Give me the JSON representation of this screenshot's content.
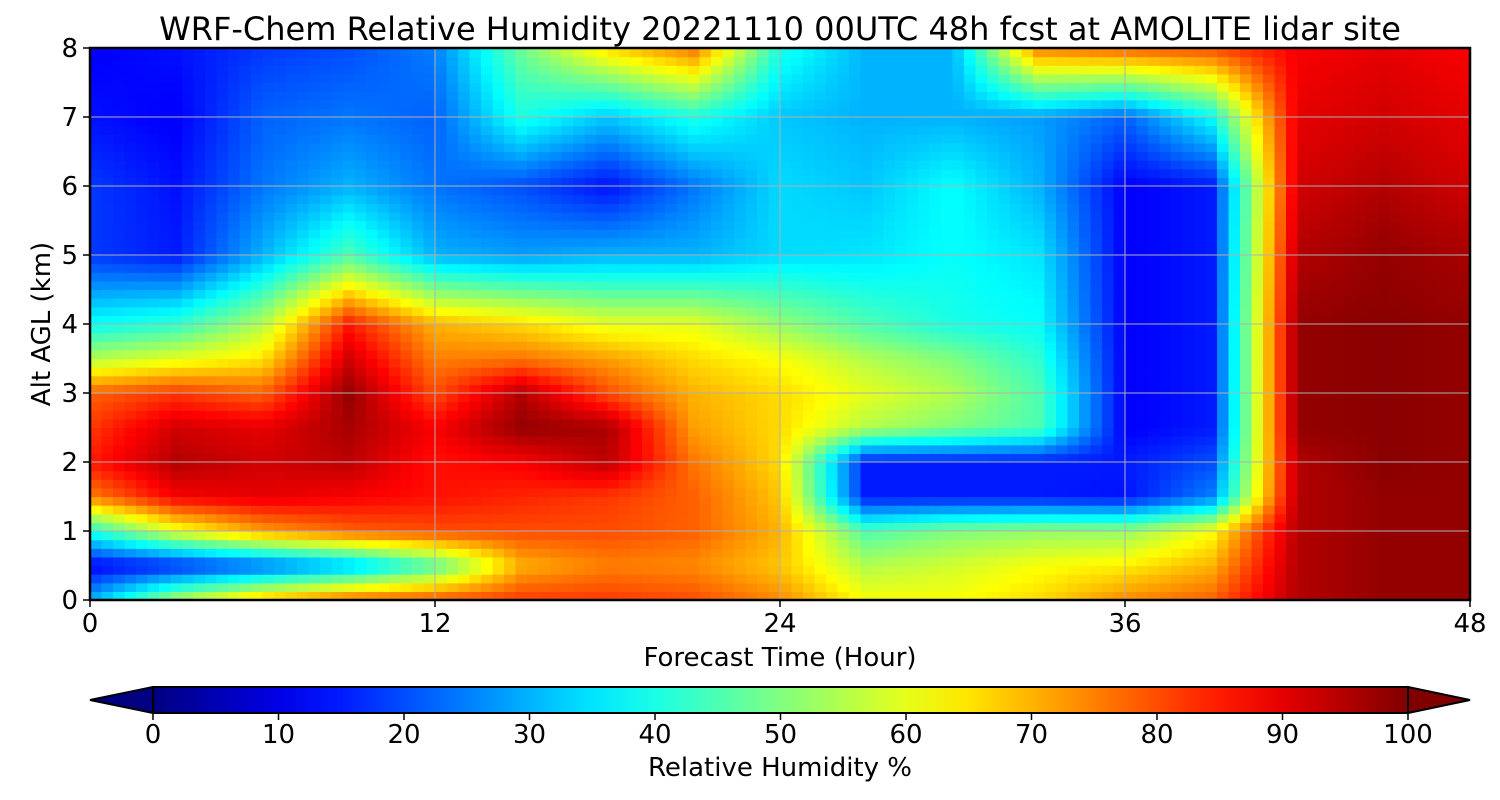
{
  "chart_data": {
    "type": "heatmap",
    "title": "WRF-Chem Relative Humidity 20221110 00UTC 48h fcst at AMOLITE lidar site",
    "xlabel": "Forecast Time (Hour)",
    "ylabel": "Alt AGL (km)",
    "xlim": [
      0,
      48
    ],
    "ylim": [
      0,
      8
    ],
    "xticks": [
      "0",
      "12",
      "24",
      "36",
      "48"
    ],
    "yticks": [
      "0",
      "1",
      "2",
      "3",
      "4",
      "5",
      "6",
      "7",
      "8"
    ],
    "grid": true,
    "colormap": "jet",
    "colorbar": {
      "label": "Relative Humidity %",
      "range": [
        0,
        100
      ],
      "ticks": [
        "0",
        "10",
        "20",
        "30",
        "40",
        "50",
        "60",
        "70",
        "80",
        "90",
        "100"
      ],
      "extend": "both",
      "orientation": "horizontal",
      "position": "bottom"
    },
    "x": [
      0,
      3,
      6,
      9,
      12,
      15,
      18,
      21,
      24,
      27,
      30,
      33,
      36,
      39,
      42,
      45,
      48
    ],
    "y": [
      0,
      0.5,
      1,
      1.5,
      2,
      2.5,
      3,
      3.5,
      4,
      5,
      6,
      7,
      8
    ],
    "z": [
      [
        30,
        55,
        70,
        78,
        80,
        82,
        82,
        80,
        74,
        62,
        62,
        66,
        74,
        78,
        95,
        98,
        98
      ],
      [
        12,
        16,
        22,
        30,
        45,
        70,
        75,
        74,
        68,
        55,
        58,
        62,
        64,
        70,
        95,
        98,
        98
      ],
      [
        40,
        60,
        72,
        78,
        80,
        80,
        80,
        78,
        70,
        45,
        50,
        52,
        52,
        62,
        95,
        98,
        98
      ],
      [
        75,
        88,
        90,
        88,
        86,
        84,
        82,
        78,
        68,
        15,
        15,
        15,
        14,
        25,
        95,
        98,
        98
      ],
      [
        85,
        95,
        92,
        94,
        86,
        88,
        94,
        76,
        66,
        15,
        15,
        15,
        15,
        20,
        95,
        99,
        98
      ],
      [
        82,
        92,
        90,
        96,
        88,
        98,
        96,
        72,
        66,
        55,
        50,
        45,
        12,
        15,
        98,
        99,
        98
      ],
      [
        78,
        82,
        78,
        98,
        80,
        95,
        80,
        70,
        66,
        60,
        55,
        45,
        12,
        15,
        98,
        99,
        98
      ],
      [
        55,
        60,
        65,
        92,
        75,
        76,
        72,
        66,
        62,
        55,
        50,
        42,
        12,
        15,
        98,
        99,
        98
      ],
      [
        38,
        42,
        55,
        85,
        70,
        66,
        60,
        60,
        52,
        45,
        40,
        38,
        12,
        15,
        98,
        99,
        98
      ],
      [
        18,
        15,
        30,
        45,
        30,
        28,
        30,
        30,
        34,
        35,
        38,
        35,
        12,
        15,
        95,
        98,
        96
      ],
      [
        18,
        14,
        24,
        30,
        24,
        20,
        14,
        24,
        34,
        32,
        38,
        30,
        12,
        15,
        92,
        95,
        92
      ],
      [
        14,
        12,
        22,
        24,
        22,
        40,
        32,
        40,
        32,
        30,
        30,
        28,
        22,
        38,
        90,
        92,
        90
      ],
      [
        12,
        14,
        18,
        20,
        25,
        48,
        66,
        76,
        40,
        30,
        30,
        75,
        78,
        80,
        88,
        90,
        88
      ]
    ]
  }
}
